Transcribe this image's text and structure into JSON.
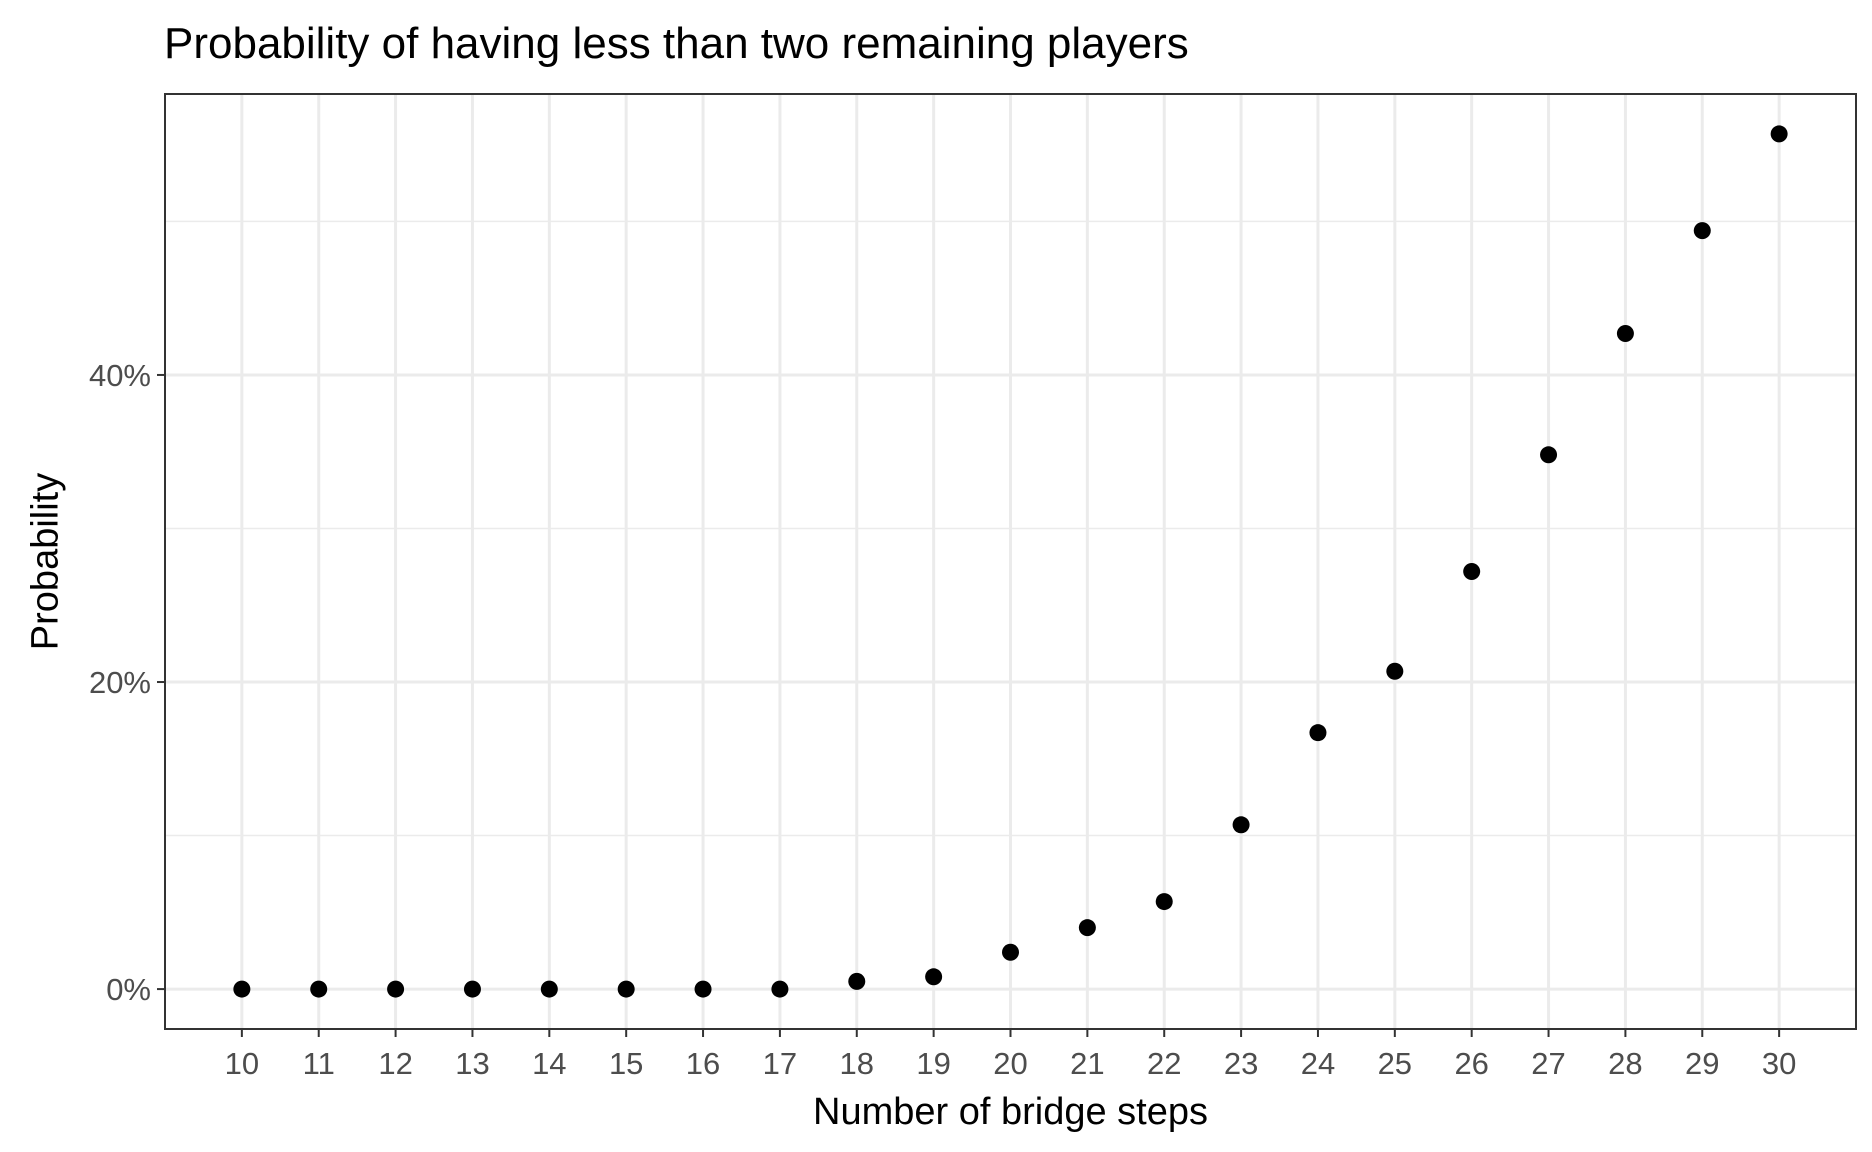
{
  "chart_data": {
    "type": "scatter",
    "title": "Probability of having less than two remaining players",
    "xlabel": "Number of bridge steps",
    "ylabel": "Probability",
    "x": [
      10,
      11,
      12,
      13,
      14,
      15,
      16,
      17,
      18,
      19,
      20,
      21,
      22,
      23,
      24,
      25,
      26,
      27,
      28,
      29,
      30
    ],
    "y": [
      0.0,
      0.0,
      0.0,
      0.0,
      0.0,
      0.0,
      0.0,
      0.0,
      0.5,
      0.8,
      2.4,
      4.0,
      5.7,
      10.7,
      16.7,
      20.7,
      27.2,
      34.8,
      42.7,
      49.4,
      55.7
    ],
    "xlim": [
      9,
      31
    ],
    "ylim": [
      -2.6,
      58.3
    ],
    "x_ticks": [
      {
        "value": 10,
        "label": "10"
      },
      {
        "value": 11,
        "label": "11"
      },
      {
        "value": 12,
        "label": "12"
      },
      {
        "value": 13,
        "label": "13"
      },
      {
        "value": 14,
        "label": "14"
      },
      {
        "value": 15,
        "label": "15"
      },
      {
        "value": 16,
        "label": "16"
      },
      {
        "value": 17,
        "label": "17"
      },
      {
        "value": 18,
        "label": "18"
      },
      {
        "value": 19,
        "label": "19"
      },
      {
        "value": 20,
        "label": "20"
      },
      {
        "value": 21,
        "label": "21"
      },
      {
        "value": 22,
        "label": "22"
      },
      {
        "value": 23,
        "label": "23"
      },
      {
        "value": 24,
        "label": "24"
      },
      {
        "value": 25,
        "label": "25"
      },
      {
        "value": 26,
        "label": "26"
      },
      {
        "value": 27,
        "label": "27"
      },
      {
        "value": 28,
        "label": "28"
      },
      {
        "value": 29,
        "label": "29"
      },
      {
        "value": 30,
        "label": "30"
      }
    ],
    "y_ticks": [
      {
        "value": 0,
        "label": "0%"
      },
      {
        "value": 20,
        "label": "20%"
      },
      {
        "value": 40,
        "label": "40%"
      }
    ],
    "y_minor_gridlines": [
      10,
      30,
      50
    ],
    "grid": true,
    "legend": "none",
    "colors": {
      "point": "#000000",
      "grid": "#ebebeb",
      "panel_border": "#333333",
      "tick_label": "#4d4d4d"
    }
  }
}
